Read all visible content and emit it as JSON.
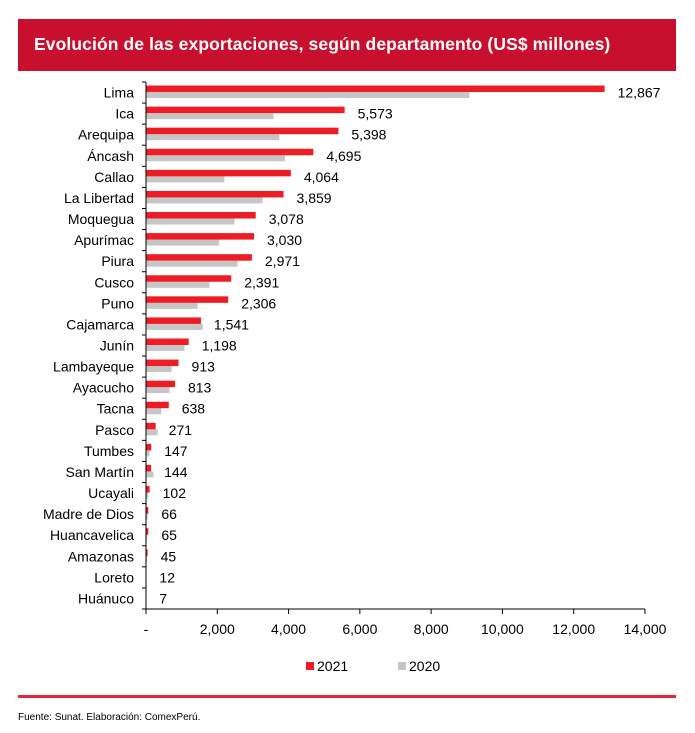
{
  "colors": {
    "title_bg": "#c8102e",
    "series_2021": "#ee1c25",
    "series_2020": "#c4c7c6",
    "axis": "#000000"
  },
  "chart_data": {
    "type": "bar",
    "orientation": "horizontal",
    "title": "Evolución de las exportaciones, según departamento (US$ millones)",
    "categories": [
      "Lima",
      "Ica",
      "Arequipa",
      "Áncash",
      "Callao",
      "La Libertad",
      "Moquegua",
      "Apurímac",
      "Piura",
      "Cusco",
      "Puno",
      "Cajamarca",
      "Junín",
      "Lambayeque",
      "Ayacucho",
      "Tacna",
      "Pasco",
      "Tumbes",
      "San Martín",
      "Ucayali",
      "Madre de Dios",
      "Huancavelica",
      "Amazonas",
      "Loreto",
      "Huánuco"
    ],
    "series": [
      {
        "name": "2021",
        "values": [
          12867,
          5573,
          5398,
          4695,
          4064,
          3859,
          3078,
          3030,
          2971,
          2391,
          2306,
          1541,
          1198,
          913,
          813,
          638,
          271,
          147,
          144,
          102,
          66,
          65,
          45,
          12,
          7
        ]
      },
      {
        "name": "2020",
        "values": [
          9070,
          3580,
          3740,
          3900,
          2200,
          3270,
          2480,
          2050,
          2570,
          1780,
          1450,
          1590,
          1080,
          720,
          660,
          430,
          330,
          100,
          210,
          60,
          45,
          30,
          30,
          15,
          10
        ]
      }
    ],
    "data_labels": [
      "12,867",
      "5,573",
      "5,398",
      "4,695",
      "4,064",
      "3,859",
      "3,078",
      "3,030",
      "2,971",
      "2,391",
      "2,306",
      "1,541",
      "1,198",
      "913",
      "813",
      "638",
      "271",
      "147",
      "144",
      "102",
      "66",
      "65",
      "45",
      "12",
      "7"
    ],
    "xlim": [
      0,
      14000
    ],
    "xticks": [
      0,
      2000,
      4000,
      6000,
      8000,
      10000,
      12000,
      14000
    ],
    "xtick_labels": [
      "-",
      "2,000",
      "4,000",
      "6,000",
      "8,000",
      "10,000",
      "12,000",
      "14,000"
    ],
    "legend": [
      "2021",
      "2020"
    ],
    "legend_position": "bottom",
    "grid": false
  },
  "source": "Fuente: Sunat. Elaboración: ComexPerú."
}
